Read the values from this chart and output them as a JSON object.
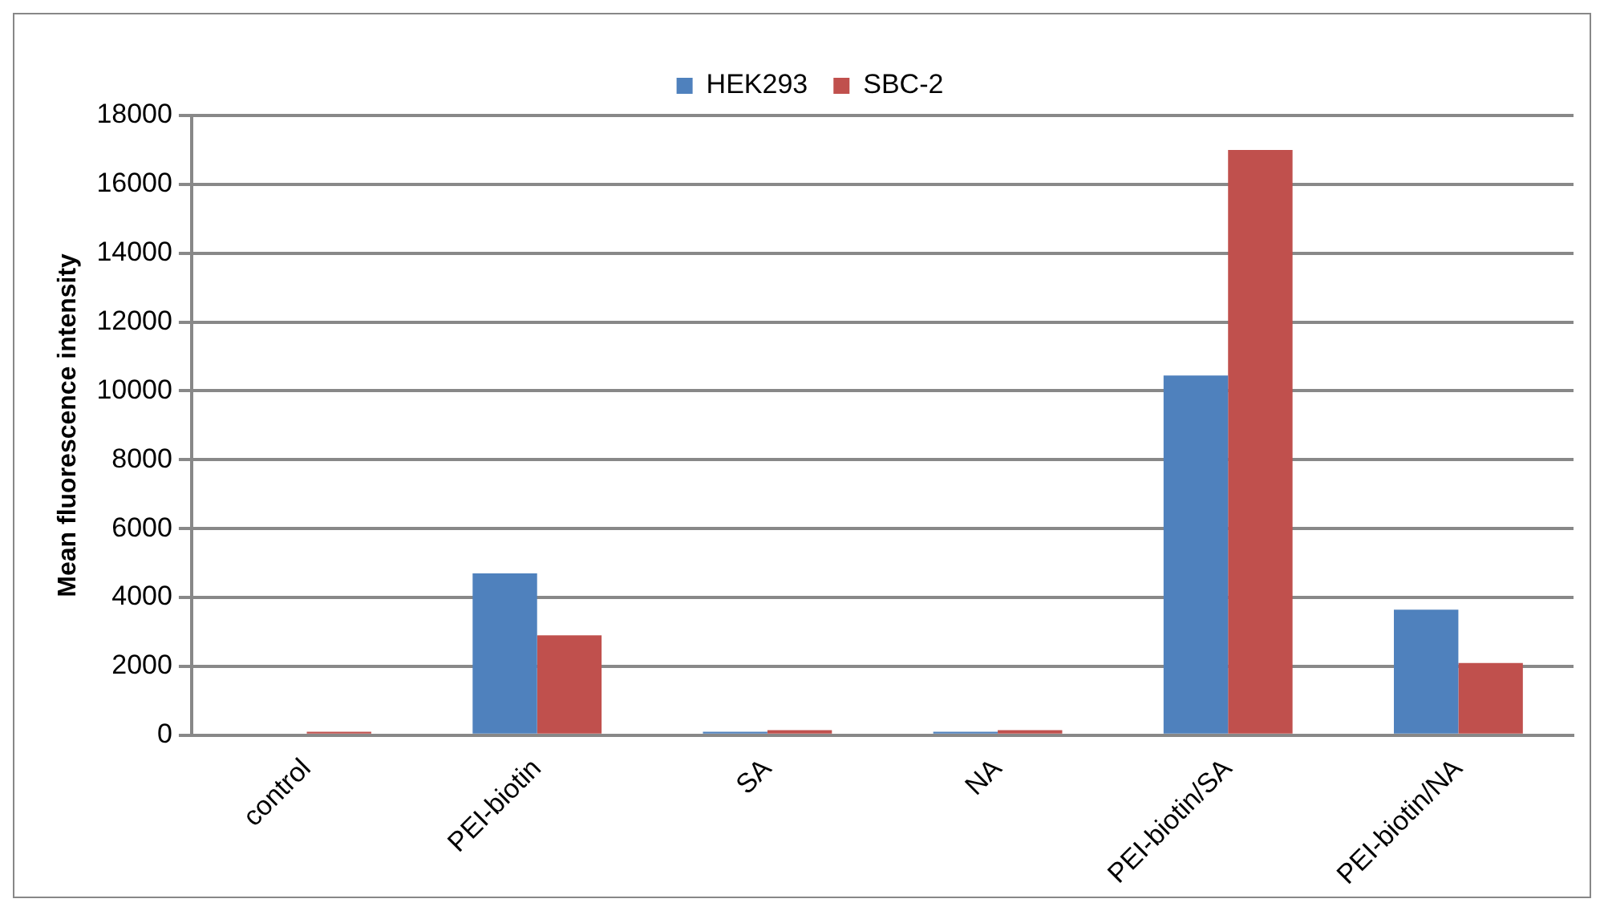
{
  "chart_data": {
    "type": "bar",
    "ylabel": "Mean fluorescence intensity",
    "categories": [
      "control",
      "PEI-biotin",
      "SA",
      "NA",
      "PEI-biotin/SA",
      "PEI-biotin/NA"
    ],
    "series": [
      {
        "name": "HEK293",
        "color": "#4f81bd",
        "values": [
          null,
          4700,
          100,
          100,
          10450,
          3650
        ]
      },
      {
        "name": "SBC-2",
        "color": "#c0504d",
        "values": [
          100,
          2900,
          150,
          150,
          17000,
          2100
        ]
      }
    ],
    "ylim": [
      0,
      18000
    ],
    "yticks": [
      0,
      2000,
      4000,
      6000,
      8000,
      10000,
      12000,
      14000,
      16000,
      18000
    ],
    "grid": "y",
    "legend": "top"
  }
}
